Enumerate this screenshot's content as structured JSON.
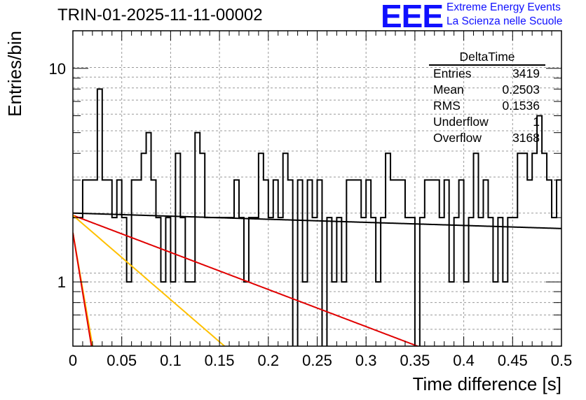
{
  "title": "TRIN-01-2025-11-11-00002",
  "logo": {
    "mark": "EEE",
    "line1": "Extreme Energy Events",
    "line2": "La Scienza nelle Scuole"
  },
  "stats_box": {
    "name": "DeltaTime",
    "rows": [
      {
        "label": "Entries",
        "value": "3419"
      },
      {
        "label": "Mean",
        "value": "0.2503"
      },
      {
        "label": "RMS",
        "value": "0.1536"
      },
      {
        "label": "Underflow",
        "value": "1"
      },
      {
        "label": "Overflow",
        "value": "3168"
      }
    ]
  },
  "colors": {
    "histogram": "#000000",
    "fit_black": "#000000",
    "fit_red": "#e00000",
    "fit_yellow": "#ffc000",
    "brand": "#1010ff"
  },
  "chart_data": {
    "type": "histogram",
    "xlabel": "Time difference [s]",
    "ylabel": "Entries/bin",
    "xlim": [
      0,
      0.5
    ],
    "ylim": [
      0.5,
      15
    ],
    "yscale": "log",
    "grid": true,
    "x_ticks": [
      "0",
      "0.05",
      "0.1",
      "0.15",
      "0.2",
      "0.25",
      "0.3",
      "0.35",
      "0.4",
      "0.45",
      "0.5"
    ],
    "y_ticks": [
      "1",
      "10"
    ],
    "bin_width": 0.005,
    "counts": [
      2,
      2,
      3,
      3,
      3,
      8,
      3,
      3,
      2,
      3,
      2,
      1,
      3,
      3,
      4,
      5,
      3,
      2,
      1,
      2,
      1,
      4,
      2,
      1,
      1,
      5,
      4,
      2,
      2,
      2,
      2,
      2,
      2,
      3,
      2,
      1,
      2,
      2,
      4,
      3,
      2,
      3,
      2,
      4,
      3,
      0,
      3,
      1,
      3,
      2,
      3,
      0,
      2,
      1,
      2,
      1,
      3,
      3,
      3,
      2,
      3,
      2,
      1,
      2,
      4,
      3,
      3,
      3,
      2,
      2,
      0,
      2,
      3,
      3,
      3,
      2,
      3,
      1,
      2,
      3,
      1,
      2,
      4,
      2,
      3,
      2,
      1,
      2,
      1,
      2,
      2,
      4,
      4,
      3,
      4,
      6,
      4,
      3,
      2,
      3
    ],
    "fit_curves": [
      {
        "name": "fit-black",
        "color": "#000000",
        "A": 2.1,
        "tau": 3.0
      },
      {
        "name": "fit-red",
        "color": "#e00000",
        "A": 2.05,
        "tau": 0.25
      },
      {
        "name": "fit-yellow",
        "color": "#ffc000",
        "A": 2.05,
        "tau": 0.11
      },
      {
        "name": "fit-steep-yellow",
        "color": "#ffc000",
        "A": 1.7,
        "tau": 0.0165
      },
      {
        "name": "fit-steep-red",
        "color": "#e00000",
        "A": 1.7,
        "tau": 0.0155
      }
    ]
  }
}
